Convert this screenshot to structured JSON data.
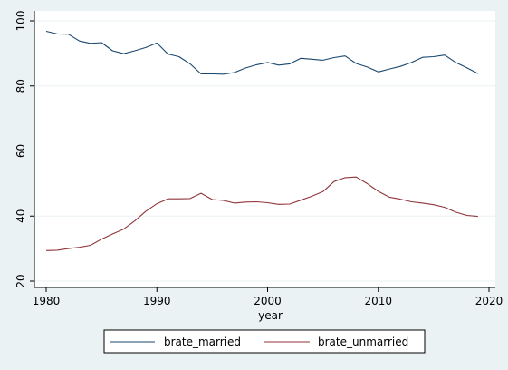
{
  "chart_data": {
    "type": "line",
    "title": "",
    "xlabel": "year",
    "ylabel": "",
    "xlim": [
      1980,
      2020
    ],
    "ylim": [
      20,
      100
    ],
    "xticks": [
      1980,
      1990,
      2000,
      2010,
      2020
    ],
    "yticks": [
      20,
      40,
      60,
      80,
      100
    ],
    "grid": "horizontal",
    "legend_position": "bottom",
    "x": [
      1980,
      1981,
      1982,
      1983,
      1984,
      1985,
      1986,
      1987,
      1988,
      1989,
      1990,
      1991,
      1992,
      1993,
      1994,
      1995,
      1996,
      1997,
      1998,
      1999,
      2000,
      2001,
      2002,
      2003,
      2004,
      2005,
      2006,
      2007,
      2008,
      2009,
      2010,
      2011,
      2012,
      2013,
      2014,
      2015,
      2016,
      2017,
      2018,
      2019
    ],
    "series": [
      {
        "name": "brate_married",
        "color": "#1a476f",
        "values": [
          96.8,
          96.0,
          95.9,
          93.8,
          93.1,
          93.3,
          90.8,
          89.9,
          90.8,
          91.8,
          93.2,
          89.8,
          89.0,
          86.8,
          83.7,
          83.7,
          83.6,
          84.1,
          85.5,
          86.5,
          87.2,
          86.4,
          86.8,
          88.5,
          88.2,
          87.9,
          88.7,
          89.2,
          86.9,
          85.8,
          84.3,
          85.2,
          86.0,
          87.2,
          88.8,
          89.0,
          89.5,
          87.2,
          85.6,
          83.8
        ]
      },
      {
        "name": "brate_unmarried",
        "color": "#90353b",
        "values": [
          29.4,
          29.5,
          30.0,
          30.4,
          31.0,
          32.9,
          34.5,
          36.0,
          38.5,
          41.5,
          43.8,
          45.3,
          45.3,
          45.4,
          47.0,
          45.1,
          44.8,
          44.0,
          44.3,
          44.4,
          44.1,
          43.6,
          43.7,
          44.9,
          46.1,
          47.5,
          50.6,
          51.8,
          52.0,
          50.0,
          47.6,
          45.8,
          45.2,
          44.4,
          44.0,
          43.5,
          42.7,
          41.2,
          40.2,
          39.9
        ]
      }
    ]
  }
}
